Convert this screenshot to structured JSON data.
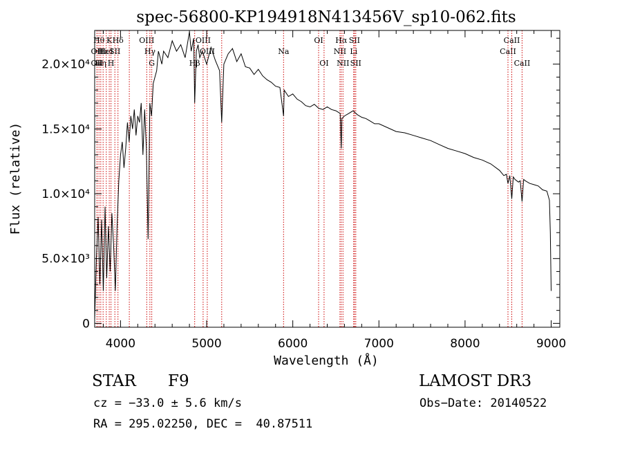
{
  "chart_data": {
    "type": "line",
    "title": "spec-56800-KP194918N413456V_sp10-062.fits",
    "xlabel": "Wavelength (Å)",
    "ylabel": "Flux (relative)",
    "xlim": [
      3700,
      9100
    ],
    "ylim": [
      -300,
      22600
    ],
    "grid": false,
    "x_ticks": [
      {
        "value": 4000,
        "label": "4000"
      },
      {
        "value": 5000,
        "label": "5000"
      },
      {
        "value": 6000,
        "label": "6000"
      },
      {
        "value": 7000,
        "label": "7000"
      },
      {
        "value": 8000,
        "label": "8000"
      },
      {
        "value": 9000,
        "label": "9000"
      }
    ],
    "y_ticks": [
      {
        "value": 0,
        "label": "0"
      },
      {
        "value": 5000,
        "label": "5.0×10³"
      },
      {
        "value": 10000,
        "label": "1.0×10⁴"
      },
      {
        "value": 15000,
        "label": "1.5×10⁴"
      },
      {
        "value": 20000,
        "label": "2.0×10⁴"
      }
    ],
    "series": [
      {
        "name": "spectrum",
        "x": [
          3700,
          3720,
          3740,
          3760,
          3780,
          3800,
          3820,
          3840,
          3860,
          3880,
          3900,
          3920,
          3940,
          3960,
          3980,
          4000,
          4020,
          4040,
          4060,
          4080,
          4100,
          4120,
          4140,
          4160,
          4180,
          4200,
          4220,
          4240,
          4260,
          4280,
          4300,
          4320,
          4340,
          4360,
          4380,
          4400,
          4420,
          4440,
          4460,
          4480,
          4500,
          4550,
          4600,
          4650,
          4700,
          4750,
          4800,
          4820,
          4850,
          4861,
          4880,
          4900,
          4920,
          4950,
          5000,
          5050,
          5100,
          5150,
          5175,
          5200,
          5250,
          5300,
          5350,
          5400,
          5450,
          5500,
          5550,
          5600,
          5650,
          5700,
          5750,
          5800,
          5850,
          5893,
          5900,
          5950,
          6000,
          6050,
          6100,
          6150,
          6200,
          6250,
          6300,
          6350,
          6400,
          6450,
          6500,
          6550,
          6563,
          6570,
          6600,
          6650,
          6700,
          6750,
          6800,
          6850,
          6900,
          6950,
          7000,
          7100,
          7200,
          7300,
          7400,
          7500,
          7600,
          7700,
          7800,
          7900,
          8000,
          8100,
          8200,
          8300,
          8400,
          8450,
          8480,
          8498,
          8520,
          8542,
          8560,
          8580,
          8600,
          8620,
          8640,
          8662,
          8680,
          8700,
          8750,
          8800,
          8850,
          8900,
          8950,
          8980,
          8990,
          9000
        ],
        "y": [
          300,
          5000,
          8200,
          3000,
          8000,
          2500,
          9000,
          3500,
          7500,
          4000,
          8500,
          6000,
          2500,
          7500,
          11000,
          13000,
          14000,
          12000,
          13500,
          15500,
          14000,
          16000,
          15000,
          16500,
          14500,
          16000,
          15500,
          17000,
          13000,
          16500,
          13500,
          6500,
          17000,
          16000,
          18500,
          19000,
          19500,
          21000,
          20500,
          20000,
          21000,
          20500,
          21800,
          21000,
          21500,
          20500,
          22500,
          21000,
          22000,
          17000,
          21000,
          21500,
          20500,
          21000,
          20000,
          21300,
          20300,
          19500,
          15500,
          20000,
          20800,
          21200,
          20200,
          20800,
          19800,
          19700,
          19200,
          19600,
          19100,
          18800,
          18600,
          18300,
          18200,
          16000,
          18000,
          17500,
          17700,
          17300,
          17100,
          16800,
          16700,
          16900,
          16600,
          16500,
          16700,
          16500,
          16400,
          16200,
          13500,
          15800,
          16000,
          16200,
          16400,
          16100,
          15900,
          15800,
          15600,
          15400,
          15400,
          15100,
          14800,
          14700,
          14500,
          14300,
          14100,
          13800,
          13500,
          13300,
          13100,
          12800,
          12600,
          12300,
          11800,
          11400,
          11500,
          10800,
          11400,
          9600,
          11300,
          11100,
          11000,
          10900,
          11000,
          9400,
          11100,
          11000,
          10800,
          10700,
          10600,
          10300,
          10200,
          9500,
          7000,
          2500
        ]
      }
    ],
    "lines": [
      {
        "wl": 3750,
        "label": "Hθ",
        "row": 1
      },
      {
        "wl": 3727,
        "label": "OII",
        "row": 2
      },
      {
        "wl": 3727,
        "label": "OII",
        "row": 3
      },
      {
        "wl": 3771,
        "label": "Hη",
        "row": 3
      },
      {
        "wl": 3798,
        "label": "Hε",
        "row": 2
      },
      {
        "wl": 3835,
        "label": "HeI",
        "row": 2
      },
      {
        "wl": 3869,
        "label": "K",
        "row": 1
      },
      {
        "wl": 3889,
        "label": "H",
        "row": 3
      },
      {
        "wl": 3934,
        "label": "SII",
        "row": 2
      },
      {
        "wl": 3970,
        "label": "Hδ",
        "row": 1
      },
      {
        "wl": 4102,
        "label": "",
        "row": 0
      },
      {
        "wl": 4304,
        "label": "OIII",
        "row": 1
      },
      {
        "wl": 4341,
        "label": "Hγ",
        "row": 2
      },
      {
        "wl": 4363,
        "label": "G",
        "row": 3
      },
      {
        "wl": 4861,
        "label": "Hβ",
        "row": 3
      },
      {
        "wl": 4959,
        "label": "OIII",
        "row": 1
      },
      {
        "wl": 5007,
        "label": "OIII",
        "row": 2
      },
      {
        "wl": 5175,
        "label": "",
        "row": 0
      },
      {
        "wl": 5893,
        "label": "Na",
        "row": 2
      },
      {
        "wl": 6300,
        "label": "OI",
        "row": 1
      },
      {
        "wl": 6363,
        "label": "OI",
        "row": 3
      },
      {
        "wl": 6548,
        "label": "NII",
        "row": 2
      },
      {
        "wl": 6563,
        "label": "Hα",
        "row": 1
      },
      {
        "wl": 6583,
        "label": "NII",
        "row": 3
      },
      {
        "wl": 6707,
        "label": "Li",
        "row": 2
      },
      {
        "wl": 6716,
        "label": "SII",
        "row": 1
      },
      {
        "wl": 6731,
        "label": "SII",
        "row": 3
      },
      {
        "wl": 8498,
        "label": "CaII",
        "row": 2
      },
      {
        "wl": 8542,
        "label": "CaII",
        "row": 1
      },
      {
        "wl": 8662,
        "label": "CaII",
        "row": 3
      }
    ]
  },
  "info": {
    "class": "STAR",
    "subclass": "F9",
    "survey": "LAMOST DR3",
    "cz": "cz = −33.0 ± 5.6 km/s",
    "obsdate": "Obs−Date: 20140522",
    "radec": "RA = 295.02250, DEC =  40.87511"
  },
  "colors": {
    "line_marker": "#cc0000",
    "spectrum": "#000000"
  }
}
